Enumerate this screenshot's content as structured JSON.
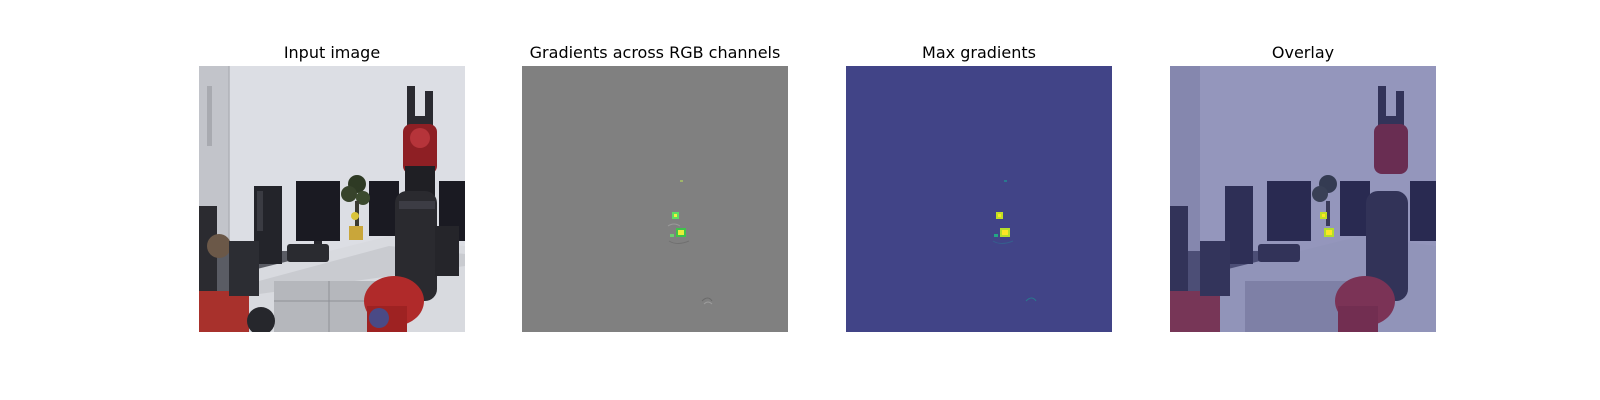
{
  "panels": [
    {
      "title": "Input image"
    },
    {
      "title": "Gradients across RGB channels"
    },
    {
      "title": "Max gradients"
    },
    {
      "title": "Overlay"
    }
  ],
  "colors": {
    "background": "#ffffff",
    "gradient_gray": "#808080",
    "max_gradient_base": "#414487",
    "highlight_yellow": "#fde725",
    "highlight_green": "#4cd35a",
    "overlay_tint": "#3b3f8c"
  }
}
